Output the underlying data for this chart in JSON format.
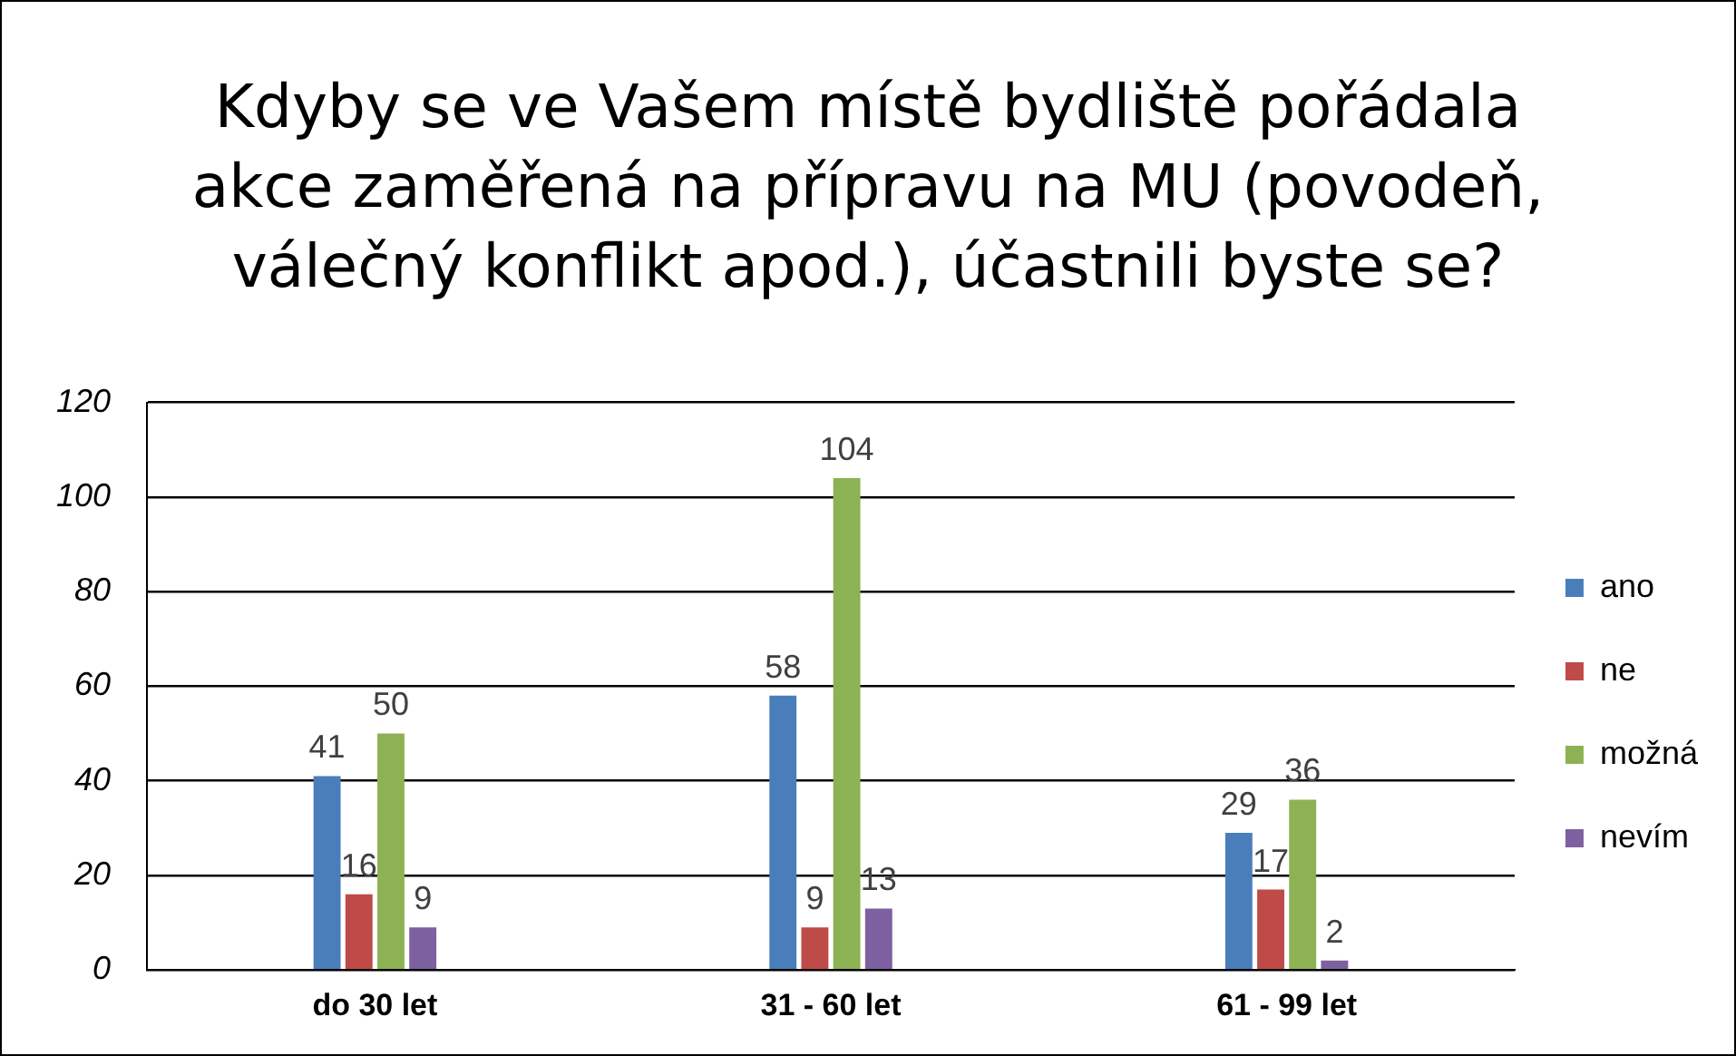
{
  "chart_data": {
    "type": "bar",
    "title": "Kdyby se ve Vašem místě bydliště pořádala akce zaměřená na přípravu na MU (povodeň, válečný konflikt apod.), účastnili byste se?",
    "categories": [
      "do 30 let",
      "31 - 60 let",
      "61 - 99 let"
    ],
    "series": [
      {
        "name": "ano",
        "color": "#4a7ebb",
        "values": [
          41,
          58,
          29
        ]
      },
      {
        "name": "ne",
        "color": "#be4b48",
        "values": [
          16,
          9,
          17
        ]
      },
      {
        "name": "možná",
        "color": "#8db254",
        "values": [
          50,
          104,
          36
        ]
      },
      {
        "name": "nevím",
        "color": "#7d60a0",
        "values": [
          9,
          13,
          2
        ]
      }
    ],
    "ylim": [
      0,
      120
    ],
    "yticks": [
      0,
      20,
      40,
      60,
      80,
      100,
      120
    ],
    "grid": "y",
    "legend": "right",
    "data_labels": true
  }
}
